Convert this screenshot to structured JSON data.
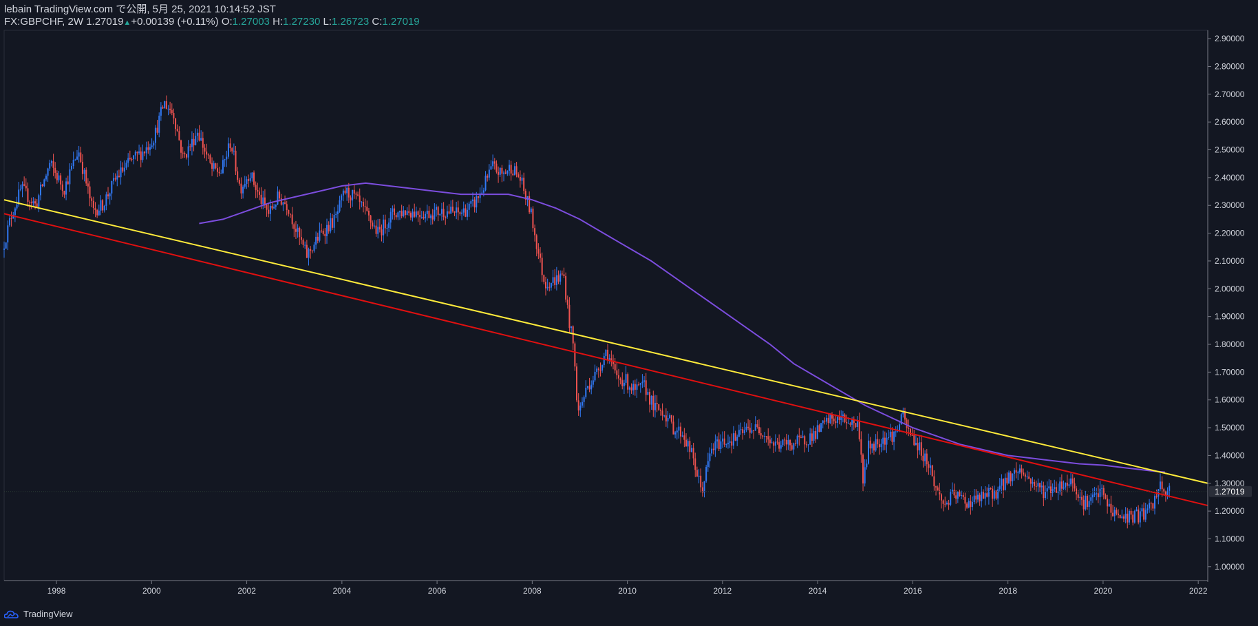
{
  "header": {
    "line1": "lebain TradingView.com で公開, 5月 25, 2021 10:14:52 JST",
    "symbol": "FX:GBPCHF, 2W",
    "last": "1.27019",
    "change": "+0.00139 (+0.11%)",
    "o_label": "O:",
    "o_value": "1.27003",
    "h_label": "H:",
    "h_value": "1.27230",
    "l_label": "L:",
    "l_value": "1.26723",
    "c_label": "C:",
    "c_value": "1.27019"
  },
  "footer": {
    "brand": "TradingView"
  },
  "colors": {
    "background": "#131722",
    "up": "#3179f5",
    "down": "#ef5350",
    "ma": "#7c4dde",
    "yellow_line": "#ffeb3b",
    "red_line": "#e01010",
    "text": "#d1d4dc",
    "positive": "#26a69a"
  },
  "chart_data": {
    "type": "candlestick",
    "symbol": "FX:GBPCHF",
    "interval": "2W",
    "ylim": [
      0.95,
      2.93
    ],
    "xlim": [
      1996.9,
      2022.2
    ],
    "y_ticks": [
      "2.90000",
      "2.80000",
      "2.70000",
      "2.60000",
      "2.50000",
      "2.40000",
      "2.30000",
      "2.20000",
      "2.10000",
      "2.00000",
      "1.90000",
      "1.80000",
      "1.70000",
      "1.60000",
      "1.50000",
      "1.40000",
      "1.30000",
      "1.20000",
      "1.10000",
      "1.00000"
    ],
    "x_ticks": [
      "1998",
      "2000",
      "2002",
      "2004",
      "2006",
      "2008",
      "2010",
      "2012",
      "2014",
      "2016",
      "2018",
      "2020",
      "2022"
    ],
    "last_price_label": "1.27019",
    "last_price": 1.27019,
    "price_path": [
      [
        1996.9,
        2.14
      ],
      [
        1997.1,
        2.27
      ],
      [
        1997.3,
        2.36
      ],
      [
        1997.6,
        2.3
      ],
      [
        1997.9,
        2.45
      ],
      [
        1998.2,
        2.36
      ],
      [
        1998.5,
        2.5
      ],
      [
        1998.8,
        2.28
      ],
      [
        1999.0,
        2.3
      ],
      [
        1999.3,
        2.4
      ],
      [
        1999.6,
        2.46
      ],
      [
        1999.9,
        2.5
      ],
      [
        2000.1,
        2.55
      ],
      [
        2000.3,
        2.67
      ],
      [
        2000.5,
        2.63
      ],
      [
        2000.7,
        2.47
      ],
      [
        2000.9,
        2.53
      ],
      [
        2001.0,
        2.57
      ],
      [
        2001.3,
        2.43
      ],
      [
        2001.5,
        2.42
      ],
      [
        2001.7,
        2.53
      ],
      [
        2001.9,
        2.36
      ],
      [
        2002.1,
        2.42
      ],
      [
        2002.3,
        2.33
      ],
      [
        2002.5,
        2.27
      ],
      [
        2002.7,
        2.33
      ],
      [
        2002.9,
        2.3
      ],
      [
        2003.1,
        2.2
      ],
      [
        2003.3,
        2.12
      ],
      [
        2003.6,
        2.2
      ],
      [
        2003.9,
        2.25
      ],
      [
        2004.1,
        2.35
      ],
      [
        2004.3,
        2.33
      ],
      [
        2004.5,
        2.28
      ],
      [
        2004.8,
        2.2
      ],
      [
        2005.1,
        2.27
      ],
      [
        2005.4,
        2.28
      ],
      [
        2005.8,
        2.27
      ],
      [
        2006.2,
        2.28
      ],
      [
        2006.5,
        2.27
      ],
      [
        2006.8,
        2.3
      ],
      [
        2007.0,
        2.36
      ],
      [
        2007.2,
        2.44
      ],
      [
        2007.4,
        2.41
      ],
      [
        2007.6,
        2.44
      ],
      [
        2007.8,
        2.39
      ],
      [
        2007.9,
        2.33
      ],
      [
        2008.0,
        2.28
      ],
      [
        2008.2,
        2.1
      ],
      [
        2008.3,
        2.02
      ],
      [
        2008.5,
        2.03
      ],
      [
        2008.7,
        2.05
      ],
      [
        2008.8,
        1.9
      ],
      [
        2008.9,
        1.8
      ],
      [
        2009.0,
        1.55
      ],
      [
        2009.2,
        1.65
      ],
      [
        2009.4,
        1.7
      ],
      [
        2009.6,
        1.78
      ],
      [
        2009.8,
        1.68
      ],
      [
        2010.0,
        1.67
      ],
      [
        2010.2,
        1.63
      ],
      [
        2010.4,
        1.65
      ],
      [
        2010.6,
        1.57
      ],
      [
        2010.8,
        1.56
      ],
      [
        2011.0,
        1.5
      ],
      [
        2011.2,
        1.48
      ],
      [
        2011.4,
        1.4
      ],
      [
        2011.6,
        1.27
      ],
      [
        2011.8,
        1.42
      ],
      [
        2012.0,
        1.45
      ],
      [
        2012.3,
        1.46
      ],
      [
        2012.6,
        1.5
      ],
      [
        2012.9,
        1.49
      ],
      [
        2013.1,
        1.44
      ],
      [
        2013.4,
        1.44
      ],
      [
        2013.7,
        1.45
      ],
      [
        2014.0,
        1.48
      ],
      [
        2014.3,
        1.53
      ],
      [
        2014.6,
        1.53
      ],
      [
        2014.9,
        1.51
      ],
      [
        2015.0,
        1.3
      ],
      [
        2015.1,
        1.43
      ],
      [
        2015.4,
        1.46
      ],
      [
        2015.7,
        1.48
      ],
      [
        2015.8,
        1.55
      ],
      [
        2015.9,
        1.5
      ],
      [
        2016.2,
        1.42
      ],
      [
        2016.4,
        1.36
      ],
      [
        2016.5,
        1.29
      ],
      [
        2016.7,
        1.22
      ],
      [
        2016.9,
        1.26
      ],
      [
        2017.2,
        1.23
      ],
      [
        2017.5,
        1.25
      ],
      [
        2017.8,
        1.27
      ],
      [
        2018.1,
        1.33
      ],
      [
        2018.3,
        1.35
      ],
      [
        2018.5,
        1.31
      ],
      [
        2018.8,
        1.27
      ],
      [
        2019.1,
        1.29
      ],
      [
        2019.4,
        1.31
      ],
      [
        2019.6,
        1.23
      ],
      [
        2019.8,
        1.24
      ],
      [
        2020.0,
        1.27
      ],
      [
        2020.2,
        1.2
      ],
      [
        2020.4,
        1.18
      ],
      [
        2020.7,
        1.18
      ],
      [
        2020.9,
        1.19
      ],
      [
        2021.1,
        1.22
      ],
      [
        2021.2,
        1.29
      ],
      [
        2021.3,
        1.27
      ],
      [
        2021.4,
        1.27
      ]
    ],
    "ma_line": [
      [
        2001.0,
        2.235
      ],
      [
        2001.5,
        2.25
      ],
      [
        2002.0,
        2.28
      ],
      [
        2002.5,
        2.31
      ],
      [
        2003.0,
        2.33
      ],
      [
        2003.5,
        2.35
      ],
      [
        2004.0,
        2.37
      ],
      [
        2004.5,
        2.38
      ],
      [
        2005.0,
        2.37
      ],
      [
        2005.5,
        2.36
      ],
      [
        2006.0,
        2.35
      ],
      [
        2006.5,
        2.34
      ],
      [
        2007.0,
        2.34
      ],
      [
        2007.5,
        2.34
      ],
      [
        2008.0,
        2.32
      ],
      [
        2008.5,
        2.29
      ],
      [
        2009.0,
        2.25
      ],
      [
        2009.5,
        2.2
      ],
      [
        2010.0,
        2.15
      ],
      [
        2010.5,
        2.1
      ],
      [
        2011.0,
        2.04
      ],
      [
        2011.5,
        1.98
      ],
      [
        2012.0,
        1.92
      ],
      [
        2012.5,
        1.86
      ],
      [
        2013.0,
        1.8
      ],
      [
        2013.5,
        1.73
      ],
      [
        2014.0,
        1.68
      ],
      [
        2014.5,
        1.63
      ],
      [
        2015.0,
        1.58
      ],
      [
        2015.5,
        1.54
      ],
      [
        2016.0,
        1.5
      ],
      [
        2016.5,
        1.47
      ],
      [
        2017.0,
        1.44
      ],
      [
        2017.5,
        1.42
      ],
      [
        2018.0,
        1.4
      ],
      [
        2018.5,
        1.39
      ],
      [
        2019.0,
        1.38
      ],
      [
        2019.5,
        1.37
      ],
      [
        2020.0,
        1.365
      ],
      [
        2020.5,
        1.355
      ],
      [
        2021.0,
        1.345
      ],
      [
        2021.3,
        1.34
      ]
    ],
    "trendlines": [
      {
        "color": "yellow",
        "points": [
          [
            1996.9,
            2.32
          ],
          [
            2022.2,
            1.3
          ]
        ]
      },
      {
        "color": "red",
        "points": [
          [
            1996.9,
            2.27
          ],
          [
            2022.2,
            1.22
          ]
        ]
      }
    ]
  }
}
